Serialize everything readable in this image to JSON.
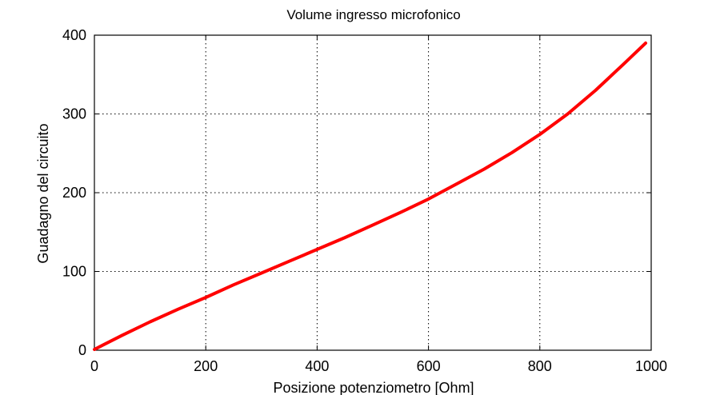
{
  "chart_data": {
    "type": "line",
    "title": "Volume ingresso microfonico",
    "xlabel": "Posizione potenziometro [Ohm]",
    "ylabel": "Guadagno del circuito",
    "xlim": [
      0,
      1000
    ],
    "ylim": [
      0,
      400
    ],
    "xticks": [
      "0",
      "200",
      "400",
      "600",
      "800",
      "1000"
    ],
    "yticks": [
      "0",
      "100",
      "200",
      "300",
      "400"
    ],
    "grid": true,
    "series": [
      {
        "color": "#ff0000",
        "x": [
          0,
          50,
          100,
          150,
          200,
          250,
          300,
          350,
          400,
          450,
          500,
          550,
          600,
          650,
          700,
          750,
          800,
          850,
          900,
          950,
          990
        ],
        "y": [
          1,
          19,
          36,
          52,
          67,
          83,
          98,
          113,
          128,
          143,
          159,
          175,
          192,
          211,
          230,
          251,
          274,
          300,
          330,
          363,
          390
        ]
      }
    ]
  }
}
